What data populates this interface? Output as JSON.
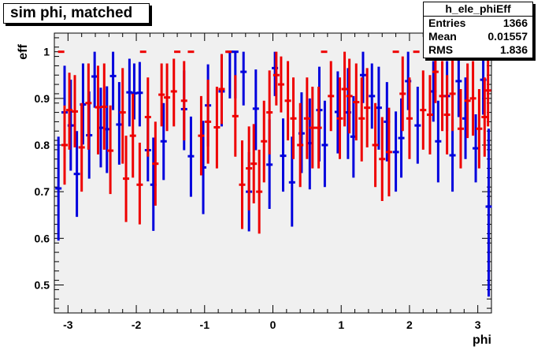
{
  "title": "sim phi, matched",
  "stats": {
    "name": "h_ele_phiEff",
    "rows": [
      {
        "label": "Entries",
        "value": "1366"
      },
      {
        "label": "Mean",
        "value": "0.01557"
      },
      {
        "label": "RMS",
        "value": "1.836"
      }
    ]
  },
  "colors": {
    "frame_fill": "#f0f0f0",
    "series_blue": "#0000dd",
    "series_red": "#ee0000"
  },
  "chart_data": {
    "type": "scatter",
    "xlabel": "phi",
    "ylabel": "eff",
    "xlim": [
      -3.2,
      3.2
    ],
    "ylim": [
      0.44,
      1.04
    ],
    "x_ticks": [
      -3,
      -2,
      -1,
      0,
      1,
      2,
      3
    ],
    "x_tick_labels": [
      "-3",
      "-2",
      "-1",
      "0",
      "1",
      "2",
      "3"
    ],
    "y_ticks": [
      0.5,
      0.6,
      0.7,
      0.8,
      0.9,
      1.0
    ],
    "y_tick_labels": [
      "0.5",
      "0.6",
      "0.7",
      "0.8",
      "0.9",
      "1"
    ],
    "series": [
      {
        "color": "blue",
        "points": [
          {
            "x": -3.14,
            "y": 0.707,
            "lo": 0.595,
            "hi": 0.818
          },
          {
            "x": -3.05,
            "y": 0.87,
            "lo": 0.772,
            "hi": 0.97
          },
          {
            "x": -2.96,
            "y": 0.842,
            "lo": 0.745,
            "hi": 0.94
          },
          {
            "x": -2.87,
            "y": 0.738,
            "lo": 0.646,
            "hi": 0.83
          },
          {
            "x": -2.78,
            "y": 0.887,
            "lo": 0.801,
            "hi": 0.975
          },
          {
            "x": -2.69,
            "y": 0.821,
            "lo": 0.728,
            "hi": 0.915
          },
          {
            "x": -2.61,
            "y": 0.947,
            "lo": 0.88,
            "hi": 1.0
          },
          {
            "x": -2.52,
            "y": 0.837,
            "lo": 0.752,
            "hi": 0.923
          },
          {
            "x": -2.43,
            "y": 0.834,
            "lo": 0.74,
            "hi": 0.926
          },
          {
            "x": -2.34,
            "y": 0.948,
            "lo": 0.875,
            "hi": 1.0
          },
          {
            "x": -2.25,
            "y": 0.844,
            "lo": 0.758,
            "hi": 0.935
          },
          {
            "x": -2.1,
            "y": 0.913,
            "lo": 0.84,
            "hi": 0.985
          },
          {
            "x": -2.03,
            "y": 0.911,
            "lo": 0.855,
            "hi": 0.975
          },
          {
            "x": -1.95,
            "y": 0.912,
            "lo": 0.84,
            "hi": 0.978
          },
          {
            "x": -1.83,
            "y": 0.789,
            "lo": 0.722,
            "hi": 0.858
          },
          {
            "x": -1.75,
            "y": 0.715,
            "lo": 0.616,
            "hi": 0.816
          },
          {
            "x": -1.6,
            "y": 0.808,
            "lo": 0.725,
            "hi": 0.89
          },
          {
            "x": -1.3,
            "y": 0.877,
            "lo": 0.789,
            "hi": 0.96
          },
          {
            "x": -1.2,
            "y": 0.776,
            "lo": 0.689,
            "hi": 0.861
          },
          {
            "x": -1.02,
            "y": 0.752,
            "lo": 0.652,
            "hi": 0.852
          },
          {
            "x": -0.95,
            "y": 0.885,
            "lo": 0.797,
            "hi": 0.973
          },
          {
            "x": -0.75,
            "y": 0.915,
            "lo": 0.84,
            "hi": 0.995
          },
          {
            "x": -0.63,
            "y": 1.0,
            "lo": 0.9,
            "hi": 1.0
          },
          {
            "x": -0.55,
            "y": 1.0,
            "lo": 0.9,
            "hi": 1.0
          },
          {
            "x": -0.43,
            "y": 0.957,
            "lo": 0.885,
            "hi": 1.0
          },
          {
            "x": -0.35,
            "y": 0.7,
            "lo": 0.615,
            "hi": 0.785
          },
          {
            "x": -0.25,
            "y": 0.878,
            "lo": 0.789,
            "hi": 0.962
          },
          {
            "x": -0.05,
            "y": 0.758,
            "lo": 0.663,
            "hi": 0.855
          },
          {
            "x": 0.03,
            "y": 0.965,
            "lo": 0.905,
            "hi": 1.0
          },
          {
            "x": 0.15,
            "y": 0.777,
            "lo": 0.7,
            "hi": 0.857
          },
          {
            "x": 0.28,
            "y": 0.72,
            "lo": 0.625,
            "hi": 0.818
          },
          {
            "x": 0.42,
            "y": 0.825,
            "lo": 0.74,
            "hi": 0.913
          },
          {
            "x": 0.54,
            "y": 0.804,
            "lo": 0.705,
            "hi": 0.9
          },
          {
            "x": 0.68,
            "y": 0.875,
            "lo": 0.765,
            "hi": 0.968
          },
          {
            "x": 0.76,
            "y": 0.8,
            "lo": 0.71,
            "hi": 0.895
          },
          {
            "x": 0.95,
            "y": 0.871,
            "lo": 0.782,
            "hi": 0.958
          },
          {
            "x": 1.1,
            "y": 0.87,
            "lo": 0.77,
            "hi": 0.965
          },
          {
            "x": 1.18,
            "y": 0.818,
            "lo": 0.73,
            "hi": 0.905
          },
          {
            "x": 1.32,
            "y": 0.95,
            "lo": 0.89,
            "hi": 1.0
          },
          {
            "x": 1.45,
            "y": 0.905,
            "lo": 0.835,
            "hi": 0.975
          },
          {
            "x": 1.55,
            "y": 0.88,
            "lo": 0.79,
            "hi": 0.968
          },
          {
            "x": 1.67,
            "y": 0.85,
            "lo": 0.765,
            "hi": 0.935
          },
          {
            "x": 1.8,
            "y": 0.785,
            "lo": 0.7,
            "hi": 0.872
          },
          {
            "x": 1.88,
            "y": 0.815,
            "lo": 0.73,
            "hi": 0.9
          },
          {
            "x": 1.98,
            "y": 0.937,
            "lo": 0.875,
            "hi": 1.0
          },
          {
            "x": 2.12,
            "y": 0.842,
            "lo": 0.76,
            "hi": 0.925
          },
          {
            "x": 2.35,
            "y": 0.915,
            "lo": 0.85,
            "hi": 0.98
          },
          {
            "x": 2.42,
            "y": 0.808,
            "lo": 0.72,
            "hi": 0.895
          },
          {
            "x": 2.55,
            "y": 0.905,
            "lo": 0.83,
            "hi": 0.98
          },
          {
            "x": 2.63,
            "y": 0.778,
            "lo": 0.7,
            "hi": 0.855
          },
          {
            "x": 2.72,
            "y": 0.937,
            "lo": 0.86,
            "hi": 1.0
          },
          {
            "x": 2.82,
            "y": 0.857,
            "lo": 0.77,
            "hi": 0.945
          },
          {
            "x": 2.97,
            "y": 0.793,
            "lo": 0.72,
            "hi": 0.866
          },
          {
            "x": 3.08,
            "y": 0.94,
            "lo": 0.865,
            "hi": 1.0
          },
          {
            "x": 3.16,
            "y": 0.668,
            "lo": 0.475,
            "hi": 0.835
          }
        ]
      },
      {
        "color": "red",
        "points": [
          {
            "x": -3.1,
            "y": 1.0,
            "lo": 1.0,
            "hi": 1.0
          },
          {
            "x": -3.05,
            "y": 0.8,
            "lo": 0.715,
            "hi": 0.885
          },
          {
            "x": -2.98,
            "y": 0.875,
            "lo": 0.79,
            "hi": 0.955
          },
          {
            "x": -2.9,
            "y": 0.872,
            "lo": 0.795,
            "hi": 0.95
          },
          {
            "x": -2.8,
            "y": 0.795,
            "lo": 0.7,
            "hi": 0.89
          },
          {
            "x": -2.7,
            "y": 0.89,
            "lo": 0.79,
            "hi": 0.975
          },
          {
            "x": -2.56,
            "y": 0.881,
            "lo": 0.78,
            "hi": 0.97
          },
          {
            "x": -2.47,
            "y": 0.882,
            "lo": 0.79,
            "hi": 0.975
          },
          {
            "x": -2.38,
            "y": 0.788,
            "lo": 0.695,
            "hi": 0.885
          },
          {
            "x": -2.2,
            "y": 0.87,
            "lo": 0.76,
            "hi": 0.965
          },
          {
            "x": -2.15,
            "y": 0.728,
            "lo": 0.635,
            "hi": 0.82
          },
          {
            "x": -2.05,
            "y": 0.82,
            "lo": 0.73,
            "hi": 0.91
          },
          {
            "x": -1.95,
            "y": 0.715,
            "lo": 0.63,
            "hi": 0.805
          },
          {
            "x": -1.9,
            "y": 1.0,
            "lo": 1.0,
            "hi": 1.0
          },
          {
            "x": -1.83,
            "y": 0.86,
            "lo": 0.775,
            "hi": 0.945
          },
          {
            "x": -1.72,
            "y": 0.76,
            "lo": 0.67,
            "hi": 0.85
          },
          {
            "x": -1.63,
            "y": 0.908,
            "lo": 0.84,
            "hi": 0.975
          },
          {
            "x": -1.55,
            "y": 0.902,
            "lo": 0.83,
            "hi": 0.975
          },
          {
            "x": -1.45,
            "y": 0.915,
            "lo": 0.84,
            "hi": 0.985
          },
          {
            "x": -1.4,
            "y": 1.0,
            "lo": 1.0,
            "hi": 1.0
          },
          {
            "x": -1.3,
            "y": 0.895,
            "lo": 0.81,
            "hi": 0.98
          },
          {
            "x": -1.2,
            "y": 1.0,
            "lo": 1.0,
            "hi": 1.0
          },
          {
            "x": -1.05,
            "y": 0.82,
            "lo": 0.735,
            "hi": 0.905
          },
          {
            "x": -0.95,
            "y": 0.85,
            "lo": 0.76,
            "hi": 0.94
          },
          {
            "x": -0.82,
            "y": 0.838,
            "lo": 0.75,
            "hi": 0.925
          },
          {
            "x": -0.75,
            "y": 0.92,
            "lo": 0.845,
            "hi": 0.995
          },
          {
            "x": -0.65,
            "y": 1.0,
            "lo": 1.0,
            "hi": 1.0
          },
          {
            "x": -0.55,
            "y": 0.862,
            "lo": 0.775,
            "hi": 0.95
          },
          {
            "x": -0.45,
            "y": 0.715,
            "lo": 0.62,
            "hi": 0.81
          },
          {
            "x": -0.35,
            "y": 0.75,
            "lo": 0.66,
            "hi": 0.84
          },
          {
            "x": -0.28,
            "y": 0.76,
            "lo": 0.675,
            "hi": 0.845
          },
          {
            "x": -0.2,
            "y": 0.7,
            "lo": 0.61,
            "hi": 0.79
          },
          {
            "x": -0.13,
            "y": 0.808,
            "lo": 0.72,
            "hi": 0.895
          },
          {
            "x": -0.05,
            "y": 0.87,
            "lo": 0.78,
            "hi": 0.96
          },
          {
            "x": 0.05,
            "y": 0.95,
            "lo": 0.885,
            "hi": 1.0
          },
          {
            "x": 0.12,
            "y": 0.93,
            "lo": 0.87,
            "hi": 0.99
          },
          {
            "x": 0.22,
            "y": 0.895,
            "lo": 0.81,
            "hi": 0.98
          },
          {
            "x": 0.3,
            "y": 0.857,
            "lo": 0.77,
            "hi": 0.945
          },
          {
            "x": 0.4,
            "y": 0.8,
            "lo": 0.71,
            "hi": 0.89
          },
          {
            "x": 0.5,
            "y": 0.857,
            "lo": 0.77,
            "hi": 0.945
          },
          {
            "x": 0.58,
            "y": 0.837,
            "lo": 0.75,
            "hi": 0.925
          },
          {
            "x": 0.67,
            "y": 0.837,
            "lo": 0.75,
            "hi": 0.925
          },
          {
            "x": 0.75,
            "y": 1.0,
            "lo": 1.0,
            "hi": 1.0
          },
          {
            "x": 0.85,
            "y": 0.905,
            "lo": 0.83,
            "hi": 0.98
          },
          {
            "x": 0.98,
            "y": 0.857,
            "lo": 0.77,
            "hi": 0.945
          },
          {
            "x": 1.05,
            "y": 0.92,
            "lo": 0.84,
            "hi": 1.0
          },
          {
            "x": 1.12,
            "y": 0.905,
            "lo": 0.825,
            "hi": 0.985
          },
          {
            "x": 1.22,
            "y": 0.892,
            "lo": 0.81,
            "hi": 0.975
          },
          {
            "x": 1.3,
            "y": 0.857,
            "lo": 0.765,
            "hi": 0.945
          },
          {
            "x": 1.38,
            "y": 0.88,
            "lo": 0.795,
            "hi": 0.965
          },
          {
            "x": 1.5,
            "y": 0.8,
            "lo": 0.71,
            "hi": 0.89
          },
          {
            "x": 1.6,
            "y": 0.77,
            "lo": 0.68,
            "hi": 0.86
          },
          {
            "x": 1.7,
            "y": 0.785,
            "lo": 0.69,
            "hi": 0.88
          },
          {
            "x": 1.8,
            "y": 1.0,
            "lo": 1.0,
            "hi": 1.0
          },
          {
            "x": 1.9,
            "y": 0.91,
            "lo": 0.83,
            "hi": 0.99
          },
          {
            "x": 2.0,
            "y": 0.857,
            "lo": 0.77,
            "hi": 0.945
          },
          {
            "x": 2.1,
            "y": 1.0,
            "lo": 1.0,
            "hi": 1.0
          },
          {
            "x": 2.2,
            "y": 0.875,
            "lo": 0.79,
            "hi": 0.96
          },
          {
            "x": 2.3,
            "y": 0.865,
            "lo": 0.78,
            "hi": 0.95
          },
          {
            "x": 2.38,
            "y": 0.957,
            "lo": 0.89,
            "hi": 1.0
          },
          {
            "x": 2.48,
            "y": 0.905,
            "lo": 0.83,
            "hi": 0.98
          },
          {
            "x": 2.55,
            "y": 0.865,
            "lo": 0.78,
            "hi": 0.95
          },
          {
            "x": 2.63,
            "y": 0.91,
            "lo": 0.83,
            "hi": 0.99
          },
          {
            "x": 2.75,
            "y": 0.835,
            "lo": 0.75,
            "hi": 0.92
          },
          {
            "x": 2.85,
            "y": 0.895,
            "lo": 0.815,
            "hi": 0.975
          },
          {
            "x": 2.93,
            "y": 0.9,
            "lo": 0.82,
            "hi": 0.98
          },
          {
            "x": 3.02,
            "y": 0.835,
            "lo": 0.75,
            "hi": 0.92
          },
          {
            "x": 3.1,
            "y": 0.86,
            "lo": 0.775,
            "hi": 0.945
          },
          {
            "x": 3.15,
            "y": 0.917,
            "lo": 0.84,
            "hi": 0.995
          }
        ]
      }
    ]
  }
}
